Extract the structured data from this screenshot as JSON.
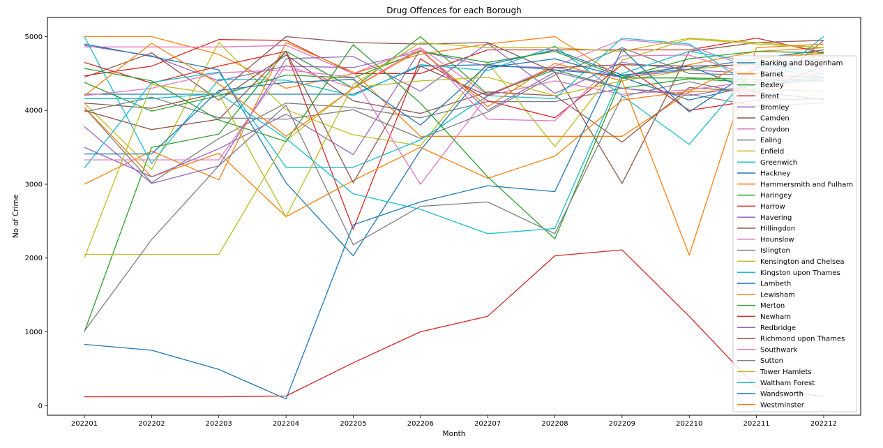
{
  "chart_data": {
    "type": "line",
    "title": "Drug Offences for each Borough",
    "xlabel": "Month",
    "ylabel": "No of Crime",
    "categories": [
      "202201",
      "202202",
      "202203",
      "202204",
      "202205",
      "202206",
      "202207",
      "202208",
      "202209",
      "202210",
      "202211",
      "202212"
    ],
    "ylim": [
      -130,
      5260
    ],
    "yticks": [
      0,
      1000,
      2000,
      3000,
      4000,
      5000
    ],
    "grid": false,
    "legend_position": "right",
    "series": [
      {
        "name": "Barking and Dagenham",
        "color": "#1f77b4",
        "values": [
          4220,
          4220,
          4220,
          4220,
          4220,
          4600,
          4620,
          4820,
          4480,
          4560,
          4700,
          4820
        ]
      },
      {
        "name": "Barnet",
        "color": "#ff7f0e",
        "values": [
          5000,
          5000,
          4760,
          4300,
          4500,
          4760,
          4900,
          5000,
          4430,
          4620,
          4800,
          4850
        ]
      },
      {
        "name": "Bexley",
        "color": "#2ca02c",
        "values": [
          1000,
          3500,
          3680,
          4800,
          4300,
          5000,
          4220,
          4550,
          4300,
          4430,
          4380,
          4450
        ]
      },
      {
        "name": "Brent",
        "color": "#d62728",
        "values": [
          4470,
          4600,
          4960,
          4950,
          4500,
          4500,
          4820,
          4820,
          4820,
          4820,
          4980,
          4780
        ]
      },
      {
        "name": "Bromley",
        "color": "#9467bd",
        "values": [
          4880,
          4740,
          4400,
          4600,
          4580,
          4800,
          4600,
          4580,
          4450,
          4550,
          4500,
          4700
        ]
      },
      {
        "name": "Camden",
        "color": "#8c564b",
        "values": [
          4100,
          4030,
          4240,
          5000,
          4920,
          4900,
          4920,
          4520,
          3010,
          4800,
          4920,
          4950
        ]
      },
      {
        "name": "Croydon",
        "color": "#e377c2",
        "values": [
          4860,
          4860,
          4860,
          4880,
          4500,
          4850,
          4210,
          4600,
          4960,
          4880,
          4550,
          4700
        ]
      },
      {
        "name": "Ealing",
        "color": "#7f7f7f",
        "values": [
          4040,
          3020,
          3620,
          4100,
          4040,
          3900,
          4120,
          4120,
          4300,
          4220,
          4060,
          4100
        ]
      },
      {
        "name": "Enfield",
        "color": "#bcbd22",
        "values": [
          4100,
          3200,
          4920,
          4010,
          3670,
          3520,
          4650,
          3510,
          4680,
          4970,
          4900,
          4850
        ]
      },
      {
        "name": "Greenwich",
        "color": "#17becf",
        "values": [
          5000,
          3280,
          4420,
          4410,
          4200,
          4620,
          4540,
          4870,
          4200,
          3540,
          4600,
          4450
        ]
      },
      {
        "name": "Hackney",
        "color": "#1f77b4",
        "values": [
          4900,
          4730,
          4550,
          3020,
          2030,
          3460,
          4580,
          4700,
          4450,
          4140,
          4350,
          4430
        ]
      },
      {
        "name": "Hammersmith and Fulham",
        "color": "#ff7f0e",
        "values": [
          3000,
          3450,
          3060,
          4920,
          4520,
          3650,
          3650,
          3650,
          3650,
          4250,
          4290,
          4260
        ]
      },
      {
        "name": "Haringey",
        "color": "#2ca02c",
        "values": [
          4380,
          3990,
          4200,
          4480,
          4440,
          4800,
          4650,
          4800,
          4450,
          4700,
          4800,
          4780
        ]
      },
      {
        "name": "Harrow",
        "color": "#d62728",
        "values": [
          4650,
          4370,
          4600,
          4800,
          2390,
          4700,
          4130,
          3900,
          4620,
          4000,
          4140,
          4160
        ]
      },
      {
        "name": "Havering",
        "color": "#9467bd",
        "values": [
          3780,
          3010,
          3250,
          4700,
          4730,
          4260,
          4910,
          4230,
          4650,
          4550,
          4650,
          4600
        ]
      },
      {
        "name": "Hillingdon",
        "color": "#8c564b",
        "values": [
          4450,
          4780,
          4140,
          4750,
          4130,
          3960,
          4250,
          4200,
          3570,
          4310,
          4250,
          4600
        ]
      },
      {
        "name": "Hounslow",
        "color": "#e377c2",
        "values": [
          4200,
          4300,
          4510,
          4550,
          4450,
          3000,
          4200,
          4400,
          4220,
          4280,
          4400,
          4480
        ]
      },
      {
        "name": "Islington",
        "color": "#7f7f7f",
        "values": [
          3980,
          4180,
          3900,
          3880,
          4010,
          3620,
          3980,
          4480,
          4850,
          4500,
          4480,
          4450
        ]
      },
      {
        "name": "Kensington and Chelsea",
        "color": "#bcbd22",
        "values": [
          2050,
          2050,
          2050,
          3590,
          4310,
          4400,
          4450,
          4200,
          4400,
          4550,
          4650,
          4800
        ]
      },
      {
        "name": "Kingston upon Thames",
        "color": "#17becf",
        "values": [
          3220,
          4380,
          4520,
          3230,
          3230,
          3600,
          4200,
          4160,
          4980,
          4900,
          4280,
          5000
        ]
      },
      {
        "name": "Lambeth",
        "color": "#1f77b4",
        "values": [
          3410,
          3410,
          4270,
          4380,
          4420,
          3800,
          4620,
          4550,
          4470,
          4600,
          4250,
          4150
        ]
      },
      {
        "name": "Lewisham",
        "color": "#ff7f0e",
        "values": [
          4040,
          3100,
          3420,
          2560,
          3050,
          3500,
          3080,
          3380,
          4140,
          4260,
          4720,
          4770
        ]
      },
      {
        "name": "Merton",
        "color": "#2ca02c",
        "values": [
          4570,
          4400,
          3870,
          3580,
          4890,
          4100,
          3100,
          2260,
          4440,
          4440,
          4420,
          4400
        ]
      },
      {
        "name": "Newham",
        "color": "#d62728",
        "values": [
          120,
          120,
          120,
          130,
          580,
          1000,
          1210,
          2030,
          2110,
          1210,
          250,
          120
        ]
      },
      {
        "name": "Redbridge",
        "color": "#9467bd",
        "values": [
          3500,
          3100,
          3480,
          3950,
          3400,
          4820,
          4000,
          4520,
          4300,
          4200,
          4350,
          4400
        ]
      },
      {
        "name": "Richmond upon Thames",
        "color": "#8c564b",
        "values": [
          4000,
          3740,
          3880,
          4800,
          3020,
          4600,
          4200,
          4580,
          4620,
          4600,
          4620,
          4650
        ]
      },
      {
        "name": "Southwark",
        "color": "#e377c2",
        "values": [
          3330,
          3330,
          3330,
          4610,
          4300,
          4850,
          3880,
          3860,
          4740,
          4750,
          4450,
          4500
        ]
      },
      {
        "name": "Sutton",
        "color": "#7f7f7f",
        "values": [
          1010,
          2250,
          3250,
          4070,
          2180,
          2700,
          2760,
          2330,
          4190,
          4390,
          4200,
          4950
        ]
      },
      {
        "name": "Tower Hamlets",
        "color": "#bcbd22",
        "values": [
          2000,
          4350,
          4220,
          2560,
          4350,
          4920,
          4850,
          4850,
          4800,
          4980,
          4920,
          4850
        ]
      },
      {
        "name": "Waltham Forest",
        "color": "#17becf",
        "values": [
          4160,
          4160,
          4230,
          3620,
          2870,
          2660,
          2330,
          2400,
          4500,
          4800,
          4650,
          4500
        ]
      },
      {
        "name": "Wandsworth",
        "color": "#1f77b4",
        "values": [
          830,
          750,
          490,
          90,
          2450,
          2760,
          2980,
          2900,
          4830,
          3980,
          4580,
          4700
        ]
      },
      {
        "name": "Westminster",
        "color": "#ff7f0e",
        "values": [
          4200,
          4910,
          4360,
          3650,
          4300,
          4820,
          4050,
          4640,
          4400,
          2040,
          4850,
          4900
        ]
      }
    ]
  }
}
